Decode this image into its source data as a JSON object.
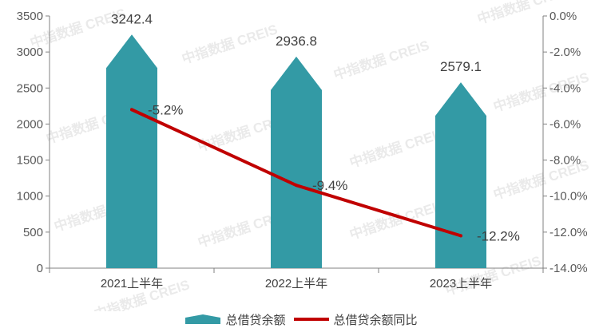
{
  "watermark": "中指数据 CREIS",
  "colors": {
    "bar": "#339aa5",
    "line": "#c00000",
    "axis": "#808080"
  },
  "chart_data": {
    "type": "bar",
    "categories": [
      "2021上半年",
      "2022上半年",
      "2023上半年"
    ],
    "series": [
      {
        "name": "总借贷余额",
        "type": "bar",
        "axis": "left",
        "values": [
          3242.4,
          2936.8,
          2579.1
        ],
        "labels": [
          "3242.4",
          "2936.8",
          "2579.1"
        ]
      },
      {
        "name": "总借贷余额同比",
        "type": "line",
        "axis": "right",
        "values": [
          -5.2,
          -9.4,
          -12.2
        ],
        "labels": [
          "-5.2%",
          "-9.4%",
          "-12.2%"
        ]
      }
    ],
    "y_left": {
      "min": 0,
      "max": 3500,
      "step": 500,
      "ticks": [
        "0",
        "500",
        "1000",
        "1500",
        "2000",
        "2500",
        "3000",
        "3500"
      ]
    },
    "y_right": {
      "min": -14,
      "max": 0,
      "step": 2,
      "ticks": [
        "0.0%",
        "-2.0%",
        "-4.0%",
        "-6.0%",
        "-8.0%",
        "-10.0%",
        "-12.0%",
        "-14.0%"
      ]
    },
    "legend_position": "bottom",
    "grid": false
  }
}
